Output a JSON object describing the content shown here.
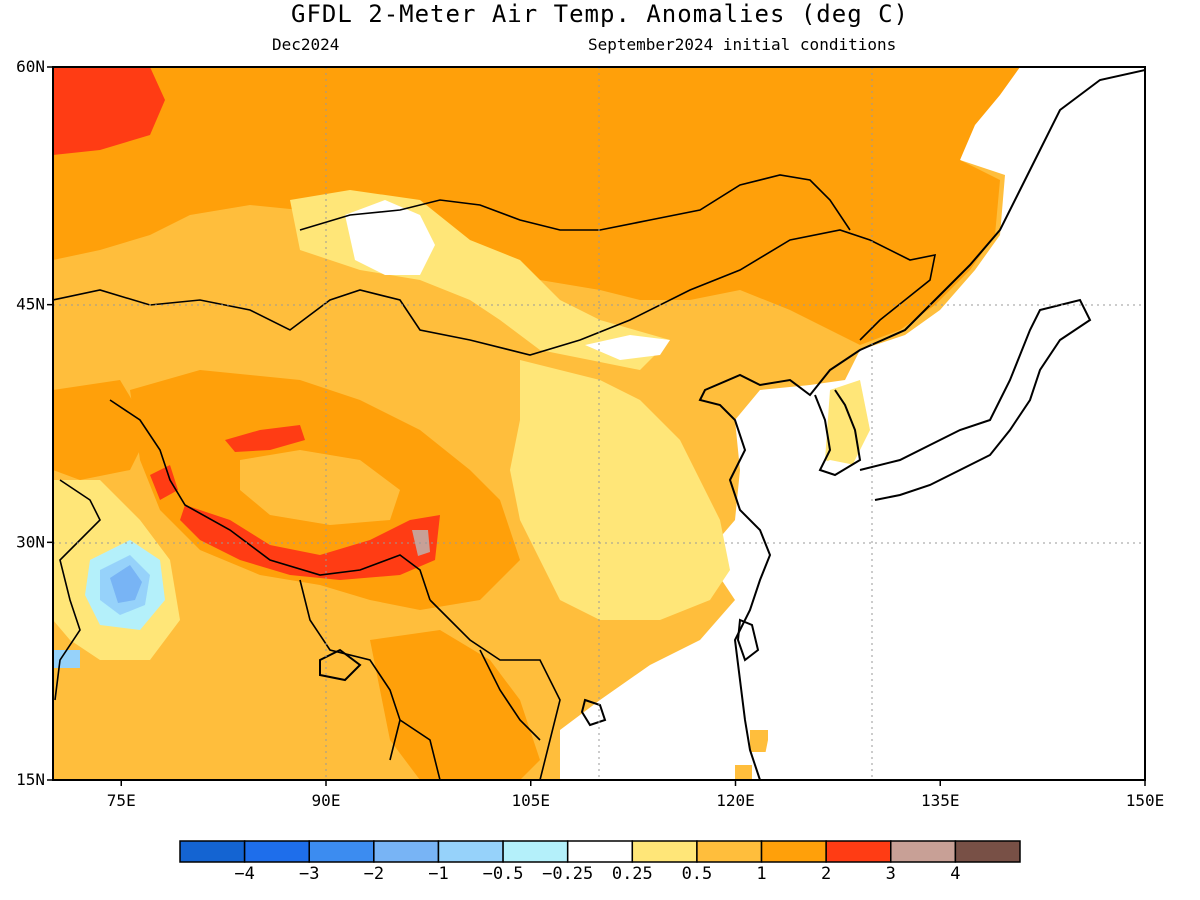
{
  "header": {
    "title": "GFDL 2-Meter Air Temp. Anomalies (deg C)",
    "valid_month": "Dec2024",
    "initial_conditions": "September2024 initial conditions"
  },
  "map_data": {
    "lon_range": [
      70,
      150
    ],
    "lat_range": [
      15,
      60
    ],
    "lat_ticks": [
      {
        "value": 60,
        "label": "60N"
      },
      {
        "value": 45,
        "label": "45N"
      },
      {
        "value": 30,
        "label": "30N"
      },
      {
        "value": 15,
        "label": "15N"
      }
    ],
    "lon_ticks": [
      {
        "value": 75,
        "label": "75E"
      },
      {
        "value": 90,
        "label": "90E"
      },
      {
        "value": 105,
        "label": "105E"
      },
      {
        "value": 120,
        "label": "120E"
      },
      {
        "value": 135,
        "label": "135E"
      },
      {
        "value": 150,
        "label": "150E"
      }
    ]
  },
  "colorbar": {
    "colors": [
      "#1464d2",
      "#1e6eeb",
      "#3c8cf0",
      "#78b4f5",
      "#96d2fa",
      "#b4f0fa",
      "#ffffff",
      "#ffe678",
      "#ffbe3c",
      "#ffa00a",
      "#ff3c14",
      "#c8a096",
      "#785046"
    ],
    "labels": [
      "−4",
      "−3",
      "−2",
      "−1",
      "−0.5",
      "−0.25",
      "0.25",
      "0.5",
      "1",
      "2",
      "3",
      "4"
    ]
  }
}
